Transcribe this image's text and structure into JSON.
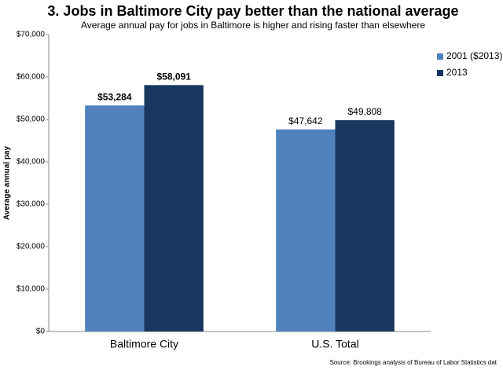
{
  "chart_data": {
    "type": "bar",
    "title": "3. Jobs in Baltimore City pay better than the national average",
    "subtitle": "Average annual  pay for jobs in Baltimore is higher and rising faster than elsewhere",
    "y_label": "Average annual pay",
    "source": "Source: Brookings analysis of Bureau of Labor Statistics dat",
    "categories": [
      "Baltimore City",
      "U.S. Total"
    ],
    "series": [
      {
        "name": "2001 ($2013)",
        "color": "#4f81bd",
        "values": [
          53284,
          47642
        ],
        "value_labels": [
          "$53,284",
          "$47,642"
        ]
      },
      {
        "name": "2013",
        "color": "#17375e",
        "values": [
          58091,
          49808
        ],
        "value_labels": [
          "$58,091",
          "$49,808"
        ]
      }
    ],
    "ylim": [
      0,
      70000
    ],
    "yticks": [
      {
        "value": 0,
        "label": "$0"
      },
      {
        "value": 10000,
        "label": "$10,000"
      },
      {
        "value": 20000,
        "label": "$20,000"
      },
      {
        "value": 30000,
        "label": "$30,000"
      },
      {
        "value": 40000,
        "label": "$40,000"
      },
      {
        "value": 50000,
        "label": "$50,000"
      },
      {
        "value": 60000,
        "label": "$60,000"
      },
      {
        "value": 70000,
        "label": "$70,000"
      }
    ],
    "legend": "right",
    "grid": false
  }
}
